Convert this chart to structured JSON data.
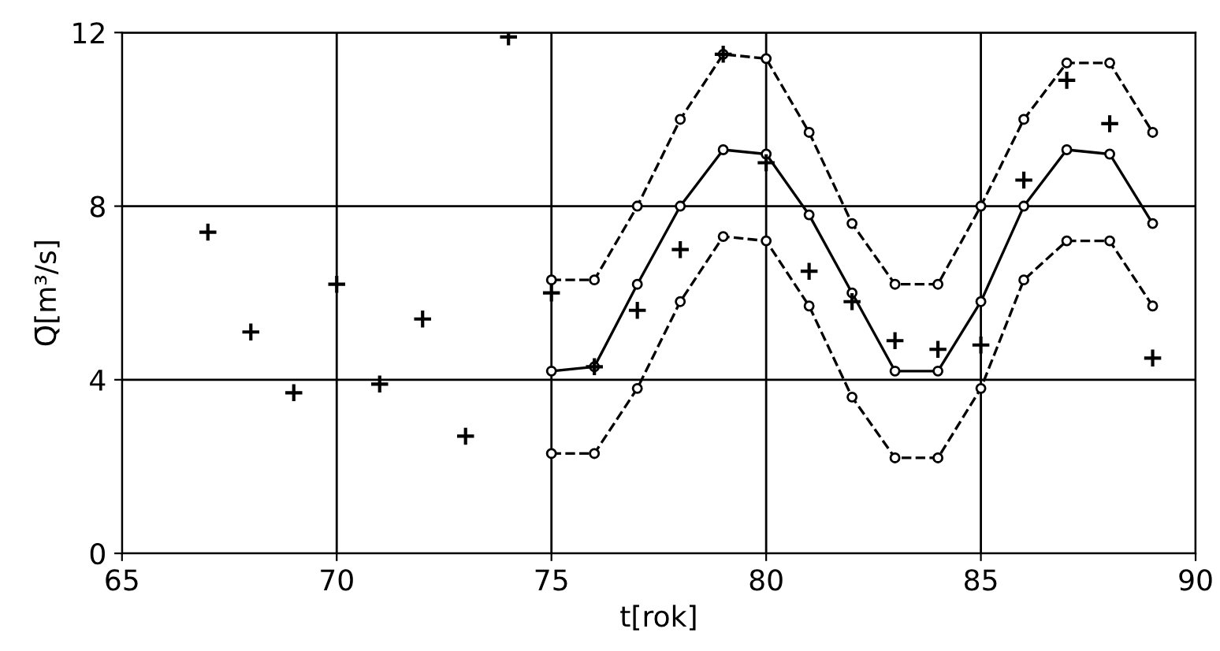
{
  "chart_data": {
    "type": "line",
    "xlabel": "t[rok]",
    "ylabel": "Q̄[m³/s]",
    "xlim": [
      65,
      90
    ],
    "ylim": [
      0,
      12
    ],
    "xticks": [
      65,
      70,
      75,
      80,
      85,
      90
    ],
    "yticks": [
      0,
      4,
      8,
      12
    ],
    "grid": true,
    "series": [
      {
        "type": "scatter",
        "marker": "cross",
        "color": "#000000",
        "x": [
          67,
          68,
          69,
          70,
          71,
          72,
          73,
          74,
          75,
          76,
          77,
          78,
          79,
          80,
          81,
          82,
          83,
          84,
          85,
          86,
          87,
          88,
          89
        ],
        "values": [
          7.4,
          5.1,
          3.7,
          6.2,
          3.9,
          5.4,
          2.7,
          11.9,
          6.0,
          4.3,
          5.6,
          7.0,
          11.5,
          9.0,
          6.5,
          5.8,
          4.9,
          4.7,
          4.8,
          8.6,
          10.9,
          9.9,
          4.5
        ]
      },
      {
        "marker": "circle",
        "line_style": "dashed",
        "color": "#000000",
        "x": [
          75,
          76,
          77,
          78,
          79,
          80,
          81,
          82,
          83,
          84,
          85,
          86,
          87,
          88,
          89
        ],
        "values": [
          6.3,
          6.3,
          8.0,
          10.0,
          11.5,
          11.4,
          9.7,
          7.6,
          6.2,
          6.2,
          8.0,
          10.0,
          11.3,
          11.3,
          9.7
        ]
      },
      {
        "marker": "circle",
        "line_style": "solid",
        "color": "#000000",
        "x": [
          75,
          76,
          77,
          78,
          79,
          80,
          81,
          82,
          83,
          84,
          85,
          86,
          87,
          88,
          89
        ],
        "values": [
          4.2,
          4.3,
          6.2,
          8.0,
          9.3,
          9.2,
          7.8,
          6.0,
          4.2,
          4.2,
          5.8,
          8.0,
          9.3,
          9.2,
          7.6
        ]
      },
      {
        "marker": "circle",
        "line_style": "dashed",
        "color": "#000000",
        "x": [
          75,
          76,
          77,
          78,
          79,
          80,
          81,
          82,
          83,
          84,
          85,
          86,
          87,
          88,
          89
        ],
        "values": [
          2.3,
          2.3,
          3.8,
          5.8,
          7.3,
          7.2,
          5.7,
          3.6,
          2.2,
          2.2,
          3.8,
          6.3,
          7.2,
          7.2,
          5.7
        ]
      }
    ]
  }
}
